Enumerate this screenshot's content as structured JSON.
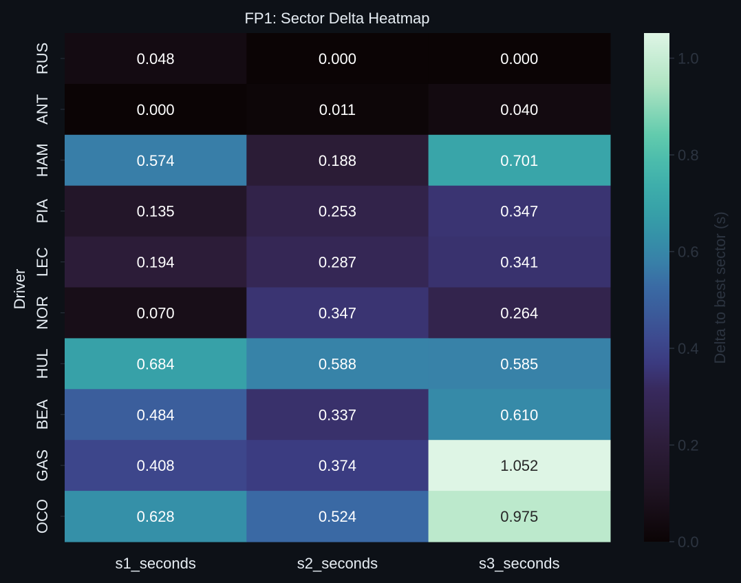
{
  "chart_data": {
    "type": "heatmap",
    "title": "FP1: Sector Delta Heatmap",
    "xlabel": "",
    "ylabel": "Driver",
    "x_categories": [
      "s1_seconds",
      "s2_seconds",
      "s3_seconds"
    ],
    "y_categories": [
      "RUS",
      "ANT",
      "HAM",
      "PIA",
      "LEC",
      "NOR",
      "HUL",
      "BEA",
      "GAS",
      "OCO"
    ],
    "values": [
      [
        0.048,
        0.0,
        0.0
      ],
      [
        0.0,
        0.011,
        0.04
      ],
      [
        0.574,
        0.188,
        0.701
      ],
      [
        0.135,
        0.253,
        0.347
      ],
      [
        0.194,
        0.287,
        0.341
      ],
      [
        0.07,
        0.347,
        0.264
      ],
      [
        0.684,
        0.588,
        0.585
      ],
      [
        0.484,
        0.337,
        0.61
      ],
      [
        0.408,
        0.374,
        1.052
      ],
      [
        0.628,
        0.524,
        0.975
      ]
    ],
    "cell_labels": [
      [
        "0.048",
        "0.000",
        "0.000"
      ],
      [
        "0.000",
        "0.011",
        "0.040"
      ],
      [
        "0.574",
        "0.188",
        "0.701"
      ],
      [
        "0.135",
        "0.253",
        "0.347"
      ],
      [
        "0.194",
        "0.287",
        "0.341"
      ],
      [
        "0.070",
        "0.347",
        "0.264"
      ],
      [
        "0.684",
        "0.588",
        "0.585"
      ],
      [
        "0.484",
        "0.337",
        "0.610"
      ],
      [
        "0.408",
        "0.374",
        "1.052"
      ],
      [
        "0.628",
        "0.524",
        "0.975"
      ]
    ],
    "colorbar": {
      "label": "Delta to best sector (s)",
      "range": [
        0.0,
        1.052
      ],
      "ticks": [
        0.0,
        0.2,
        0.4,
        0.6,
        0.8,
        1.0
      ],
      "tick_labels": [
        "0.0",
        "0.2",
        "0.4",
        "0.6",
        "0.8",
        "1.0"
      ]
    },
    "colormap": "mako",
    "colormap_stops": [
      [
        0.0,
        "#0b0405"
      ],
      [
        0.1,
        "#1f1322"
      ],
      [
        0.2,
        "#2e1e3c"
      ],
      [
        0.3,
        "#382a5e"
      ],
      [
        0.35,
        "#3b3a7f"
      ],
      [
        0.4,
        "#3d4a8f"
      ],
      [
        0.45,
        "#3b5b9a"
      ],
      [
        0.5,
        "#3a6aa4"
      ],
      [
        0.55,
        "#3880a8"
      ],
      [
        0.6,
        "#3591a8"
      ],
      [
        0.65,
        "#37a1a8"
      ],
      [
        0.7,
        "#3eaeab"
      ],
      [
        0.75,
        "#4cbcac"
      ],
      [
        0.8,
        "#62cbad"
      ],
      [
        0.9,
        "#b0e4c3"
      ],
      [
        1.0,
        "#def5e5"
      ]
    ],
    "grid": false,
    "background_color": "#0d1117",
    "text_color": "#e6edf3"
  }
}
